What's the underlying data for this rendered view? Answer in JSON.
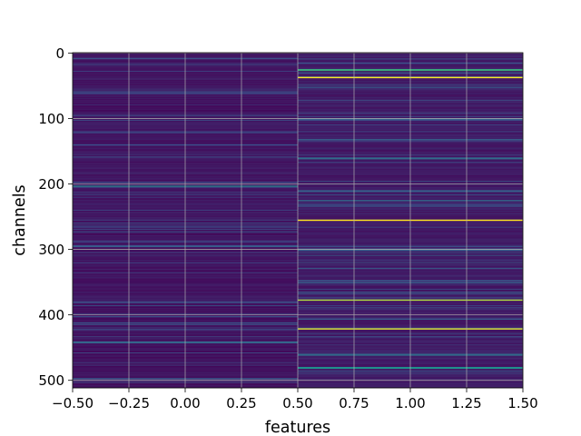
{
  "chart_data": {
    "type": "heatmap",
    "title": "",
    "xlabel": "features",
    "ylabel": "channels",
    "xlim": [
      -0.5,
      1.5
    ],
    "ylim": [
      511.5,
      -0.5
    ],
    "y_inverted": true,
    "x_ticks": [
      -0.5,
      -0.25,
      0.0,
      0.25,
      0.5,
      0.75,
      1.0,
      1.25,
      1.5
    ],
    "x_tick_labels": [
      "−0.50",
      "−0.25",
      "0.00",
      "0.25",
      "0.50",
      "0.75",
      "1.00",
      "1.25",
      "1.50"
    ],
    "y_ticks": [
      0,
      100,
      200,
      300,
      400,
      500
    ],
    "y_tick_labels": [
      "0",
      "100",
      "200",
      "300",
      "400",
      "500"
    ],
    "grid": true,
    "colormap": "viridis",
    "columns": [
      0,
      1
    ],
    "rows": 512,
    "column_data": [
      {
        "feature": 0,
        "base_value": 0.06,
        "highlights": [
          {
            "rows": [
              60,
              62
            ],
            "value": 0.22
          },
          {
            "rows": [
              120,
              122
            ],
            "value": 0.2
          },
          {
            "rows": [
              140,
              141
            ],
            "value": 0.25
          },
          {
            "rows": [
              203,
              204
            ],
            "value": 0.42
          },
          {
            "rows": [
              295,
              296
            ],
            "value": 0.3
          },
          {
            "rows": [
              441,
              443
            ],
            "value": 0.32
          },
          {
            "rows": [
              497,
              498
            ],
            "value": 0.28
          }
        ]
      },
      {
        "feature": 1,
        "base_value": 0.08,
        "highlights": [
          {
            "rows": [
              25,
              27
            ],
            "value": 0.6
          },
          {
            "rows": [
              37,
              38
            ],
            "value": 1.0
          },
          {
            "rows": [
              100,
              102
            ],
            "value": 0.3
          },
          {
            "rows": [
              160,
              162
            ],
            "value": 0.35
          },
          {
            "rows": [
              210,
              212
            ],
            "value": 0.3
          },
          {
            "rows": [
              225,
              226
            ],
            "value": 0.35
          },
          {
            "rows": [
              255,
              256
            ],
            "value": 1.0
          },
          {
            "rows": [
              300,
              302
            ],
            "value": 0.3
          },
          {
            "rows": [
              350,
              351
            ],
            "value": 0.3
          },
          {
            "rows": [
              377,
              378
            ],
            "value": 0.88
          },
          {
            "rows": [
              421,
              422
            ],
            "value": 0.95
          },
          {
            "rows": [
              460,
              462
            ],
            "value": 0.35
          },
          {
            "rows": [
              480,
              482
            ],
            "value": 0.5
          }
        ]
      }
    ]
  }
}
